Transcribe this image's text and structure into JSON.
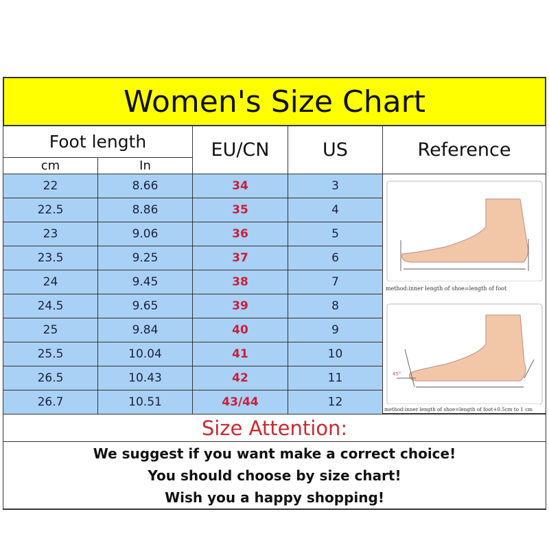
{
  "title": "Women's Size Chart",
  "headers": {
    "foot_length": "Foot length",
    "cm": "cm",
    "in": "In",
    "eu_cn": "EU/CN",
    "us": "US",
    "reference": "Reference"
  },
  "rows": [
    {
      "cm": "22",
      "in": "8.66",
      "eu": "34",
      "us": "3"
    },
    {
      "cm": "22.5",
      "in": "8.86",
      "eu": "35",
      "us": "4"
    },
    {
      "cm": "23",
      "in": "9.06",
      "eu": "36",
      "us": "5"
    },
    {
      "cm": "23.5",
      "in": "9.25",
      "eu": "37",
      "us": "6"
    },
    {
      "cm": "24",
      "in": "9.45",
      "eu": "38",
      "us": "7"
    },
    {
      "cm": "24.5",
      "in": "9.65",
      "eu": "39",
      "us": "8"
    },
    {
      "cm": "25",
      "in": "9.84",
      "eu": "40",
      "us": "9"
    },
    {
      "cm": "25.5",
      "in": "10.04",
      "eu": "41",
      "us": "10"
    },
    {
      "cm": "26.5",
      "in": "10.43",
      "eu": "42",
      "us": "11"
    },
    {
      "cm": "26.7",
      "in": "10.51",
      "eu": "43/44",
      "us": "12"
    }
  ],
  "reference": {
    "caption_1": "method:inner length of shoe=length of foot",
    "caption_2": "method:inner length of shoe=length of foot+0.5cm to 1 cm",
    "angle_label": "45°"
  },
  "attention": {
    "heading": "Size Attention:",
    "lines": [
      "We suggest if you want make a correct choice!",
      "You should choose by size chart!",
      "Wish you a happy shopping!"
    ]
  },
  "colors": {
    "title_bg": "#ffff00",
    "row_bg": "#a9d1f5",
    "eu_text": "#c8203a",
    "attention_text": "#c82a30"
  }
}
